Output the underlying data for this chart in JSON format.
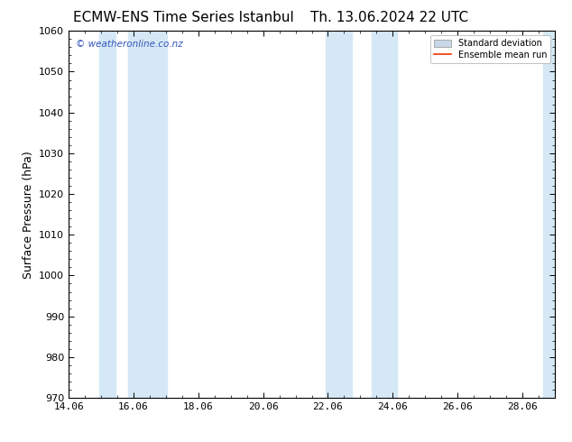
{
  "title_left": "ECMW-ENS Time Series Istanbul",
  "title_right": "Th. 13.06.2024 22 UTC",
  "ylabel": "Surface Pressure (hPa)",
  "xlim": [
    14.06,
    29.06
  ],
  "ylim": [
    970,
    1060
  ],
  "yticks": [
    970,
    980,
    990,
    1000,
    1010,
    1020,
    1030,
    1040,
    1050,
    1060
  ],
  "xticks": [
    14.06,
    16.06,
    18.06,
    20.06,
    22.06,
    24.06,
    26.06,
    28.06
  ],
  "xticklabels": [
    "14.06",
    "16.06",
    "18.06",
    "20.06",
    "22.06",
    "24.06",
    "26.06",
    "28.06"
  ],
  "watermark": "© weatheronline.co.nz",
  "watermark_color": "#3355bb",
  "background_color": "#ffffff",
  "shaded_bands": [
    {
      "x_start": 15.0,
      "x_end": 15.5
    },
    {
      "x_start": 15.9,
      "x_end": 17.1
    },
    {
      "x_start": 22.0,
      "x_end": 22.8
    },
    {
      "x_start": 23.4,
      "x_end": 24.2
    },
    {
      "x_start": 28.7,
      "x_end": 29.1
    }
  ],
  "shade_color": "#d5e8f5",
  "legend_std_color": "#c8d8e8",
  "legend_std_edge": "#aaaaaa",
  "legend_mean_color": "#ee3300",
  "title_fontsize": 11,
  "label_fontsize": 9,
  "tick_fontsize": 8
}
